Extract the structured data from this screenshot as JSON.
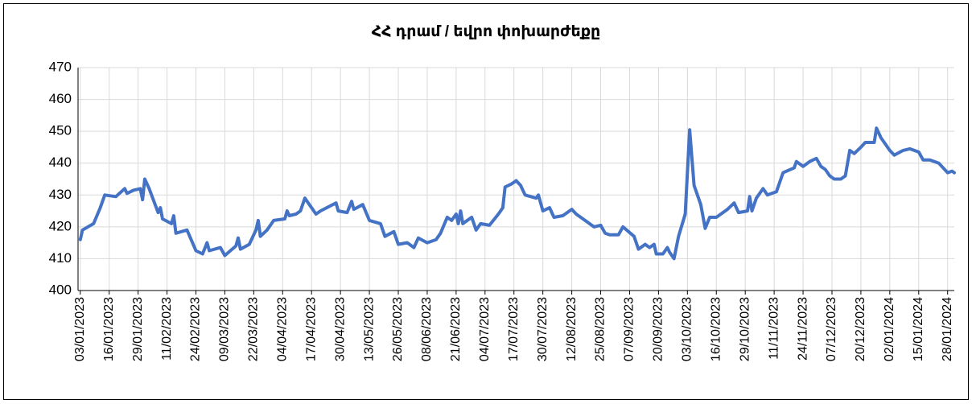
{
  "chart_data": {
    "type": "line",
    "title": "ՀՀ դրամ / եվրո փոխարժեքը",
    "color": "#4472c4",
    "grid": true,
    "ylim": [
      400,
      470
    ],
    "yticks": [
      400,
      410,
      420,
      430,
      440,
      450,
      460,
      470
    ],
    "xlim": [
      "02/01/2023",
      "31/01/2024"
    ],
    "xticks": [
      "03/01/2023",
      "16/01/2023",
      "29/01/2023",
      "11/02/2023",
      "24/02/2023",
      "09/03/2023",
      "22/03/2023",
      "04/04/2023",
      "17/04/2023",
      "30/04/2023",
      "13/05/2023",
      "26/05/2023",
      "08/06/2023",
      "21/06/2023",
      "04/07/2023",
      "17/07/2023",
      "30/07/2023",
      "12/08/2023",
      "25/08/2023",
      "07/09/2023",
      "20/09/2023",
      "03/10/2023",
      "16/10/2023",
      "29/10/2023",
      "11/11/2023",
      "24/11/2023",
      "07/12/2023",
      "20/12/2023",
      "02/01/2024",
      "15/01/2024",
      "28/01/2024"
    ],
    "x": [
      "03/01/2023",
      "04/01/2023",
      "09/01/2023",
      "12/01/2023",
      "14/01/2023",
      "19/01/2023",
      "23/01/2023",
      "24/01/2023",
      "27/01/2023",
      "30/01/2023",
      "31/01/2023",
      "01/02/2023",
      "03/02/2023",
      "07/02/2023",
      "08/02/2023",
      "09/02/2023",
      "13/02/2023",
      "14/02/2023",
      "15/02/2023",
      "20/02/2023",
      "24/02/2023",
      "27/02/2023",
      "01/03/2023",
      "02/03/2023",
      "07/03/2023",
      "09/03/2023",
      "14/03/2023",
      "15/03/2023",
      "16/03/2023",
      "20/03/2023",
      "23/03/2023",
      "24/03/2023",
      "25/03/2023",
      "28/03/2023",
      "31/03/2023",
      "05/04/2023",
      "06/04/2023",
      "07/04/2023",
      "10/04/2023",
      "12/04/2023",
      "14/04/2023",
      "19/04/2023",
      "21/04/2023",
      "28/04/2023",
      "29/04/2023",
      "03/05/2023",
      "05/05/2023",
      "06/05/2023",
      "10/05/2023",
      "13/05/2023",
      "18/05/2023",
      "20/05/2023",
      "24/05/2023",
      "26/05/2023",
      "30/05/2023",
      "02/06/2023",
      "04/06/2023",
      "08/06/2023",
      "12/06/2023",
      "14/06/2023",
      "17/06/2023",
      "19/06/2023",
      "21/06/2023",
      "22/06/2023",
      "23/06/2023",
      "24/06/2023",
      "28/06/2023",
      "30/06/2023",
      "02/07/2023",
      "06/07/2023",
      "10/07/2023",
      "12/07/2023",
      "13/07/2023",
      "16/07/2023",
      "18/07/2023",
      "20/07/2023",
      "22/07/2023",
      "27/07/2023",
      "28/07/2023",
      "30/07/2023",
      "02/08/2023",
      "04/08/2023",
      "08/08/2023",
      "12/08/2023",
      "14/08/2023",
      "19/08/2023",
      "22/08/2023",
      "25/08/2023",
      "27/08/2023",
      "29/08/2023",
      "02/09/2023",
      "04/09/2023",
      "09/09/2023",
      "11/09/2023",
      "14/09/2023",
      "16/09/2023",
      "18/09/2023",
      "19/09/2023",
      "22/09/2023",
      "24/09/2023",
      "25/09/2023",
      "27/09/2023",
      "29/09/2023",
      "02/10/2023",
      "04/10/2023",
      "06/10/2023",
      "09/10/2023",
      "11/10/2023",
      "13/10/2023",
      "16/10/2023",
      "21/10/2023",
      "24/10/2023",
      "26/10/2023",
      "30/10/2023",
      "31/10/2023",
      "01/11/2023",
      "03/11/2023",
      "06/11/2023",
      "08/11/2023",
      "12/11/2023",
      "15/11/2023",
      "20/11/2023",
      "21/11/2023",
      "24/11/2023",
      "27/11/2023",
      "30/11/2023",
      "02/12/2023",
      "04/12/2023",
      "06/12/2023",
      "08/12/2023",
      "11/12/2023",
      "13/12/2023",
      "15/12/2023",
      "17/12/2023",
      "20/12/2023",
      "22/12/2023",
      "26/12/2023",
      "27/12/2023",
      "29/12/2023",
      "02/01/2024",
      "04/01/2024",
      "08/01/2024",
      "11/01/2024",
      "15/01/2024",
      "17/01/2024",
      "20/01/2024",
      "24/01/2024",
      "28/01/2024",
      "30/01/2024",
      "31/01/2024"
    ],
    "values": [
      416,
      419,
      421,
      426,
      430,
      429.5,
      432,
      430.5,
      431.5,
      432,
      428.5,
      435,
      432,
      424.5,
      426,
      422.5,
      421,
      423.5,
      418,
      419,
      412.5,
      411.5,
      415,
      412.5,
      413.5,
      411,
      414,
      416.5,
      413,
      414.5,
      419,
      422,
      417,
      419,
      422,
      422.5,
      425,
      423.5,
      424,
      425,
      429,
      424,
      425,
      427.5,
      425,
      424.5,
      428,
      425.5,
      427,
      422,
      421,
      417,
      418.5,
      414.5,
      415,
      413.5,
      416.5,
      415,
      416,
      418,
      423,
      422,
      424,
      421,
      425,
      421,
      423,
      419,
      421,
      420.5,
      424,
      426,
      432.5,
      433.5,
      434.5,
      433,
      430,
      429,
      430,
      425,
      426,
      423,
      423.5,
      425.5,
      424,
      421.5,
      420,
      420.5,
      418,
      417.5,
      417.5,
      420,
      417,
      413,
      414.5,
      413.5,
      414.5,
      411.5,
      411.5,
      413.5,
      412,
      410,
      417,
      424,
      450.5,
      433,
      427,
      419.5,
      423,
      423,
      425.5,
      427.5,
      424.5,
      425,
      429.5,
      425,
      429,
      432,
      430,
      431,
      437,
      438.5,
      440.5,
      439,
      440.5,
      441.5,
      439,
      438,
      436,
      435,
      435,
      436,
      444,
      443,
      445,
      446.5,
      446.5,
      451,
      448,
      444,
      442.5,
      444,
      444.5,
      443.5,
      441,
      441,
      440,
      437,
      437.5,
      437
    ]
  }
}
